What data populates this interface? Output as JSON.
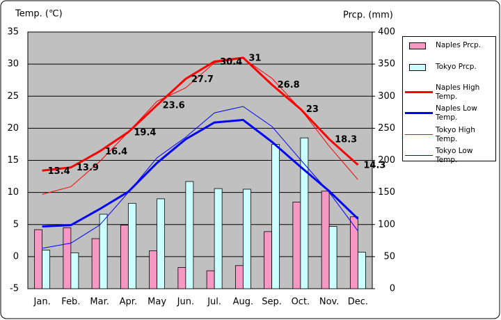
{
  "chart_data": {
    "type": "combo",
    "y_label": "Temp. (℃)",
    "y2_label": "Prcp. (mm)",
    "categories": [
      "Jan.",
      "Feb.",
      "Mar.",
      "Apr.",
      "May",
      "Jun.",
      "Jul.",
      "Aug.",
      "Sep.",
      "Oct.",
      "Nov.",
      "Dec."
    ],
    "ylim": [
      -5,
      35
    ],
    "yticks": [
      -5,
      0,
      5,
      10,
      15,
      20,
      25,
      30,
      35
    ],
    "y2lim": [
      0,
      400
    ],
    "y2ticks": [
      0,
      50,
      100,
      150,
      200,
      250,
      300,
      350,
      400
    ],
    "grid": true,
    "series": [
      {
        "name": "Naples Prcp.",
        "type": "bar",
        "axis": "y2",
        "color": "#f598c4",
        "values": [
          92,
          95,
          78,
          99,
          59,
          33,
          28,
          36,
          89,
          135,
          152,
          112
        ]
      },
      {
        "name": "Tokyo Prcp.",
        "type": "bar",
        "axis": "y2",
        "color": "#ccffff",
        "values": [
          60,
          56,
          116,
          133,
          140,
          167,
          156,
          155,
          225,
          235,
          97,
          57
        ]
      },
      {
        "name": "Naples High Temp.",
        "type": "line",
        "width": 3,
        "show_labels": true,
        "color": "#ff0000",
        "values": [
          13.4,
          13.9,
          16.4,
          19.4,
          23.6,
          27.7,
          30.4,
          31,
          26.8,
          23,
          18.3,
          14.3
        ]
      },
      {
        "name": "Naples Low Temp.",
        "type": "line",
        "width": 3,
        "color": "#0000ff",
        "values": [
          4.7,
          4.9,
          7.4,
          10.1,
          14.6,
          18.3,
          20.9,
          21.3,
          17.9,
          14.0,
          10.2,
          5.9
        ]
      },
      {
        "name": "Tokyo High Temp.",
        "type": "line",
        "width": 1,
        "color": "#ff0000",
        "values": [
          9.7,
          10.9,
          14.8,
          19.4,
          24.2,
          26.3,
          30.2,
          30.9,
          27.8,
          23.0,
          17.2,
          12.0
        ]
      },
      {
        "name": "Tokyo Low Temp.",
        "type": "line",
        "width": 1,
        "color": "#0000ff",
        "values": [
          1.3,
          2.1,
          4.9,
          10.0,
          15.4,
          18.6,
          22.4,
          23.4,
          20.3,
          15.1,
          10.0,
          4.0
        ]
      }
    ]
  }
}
